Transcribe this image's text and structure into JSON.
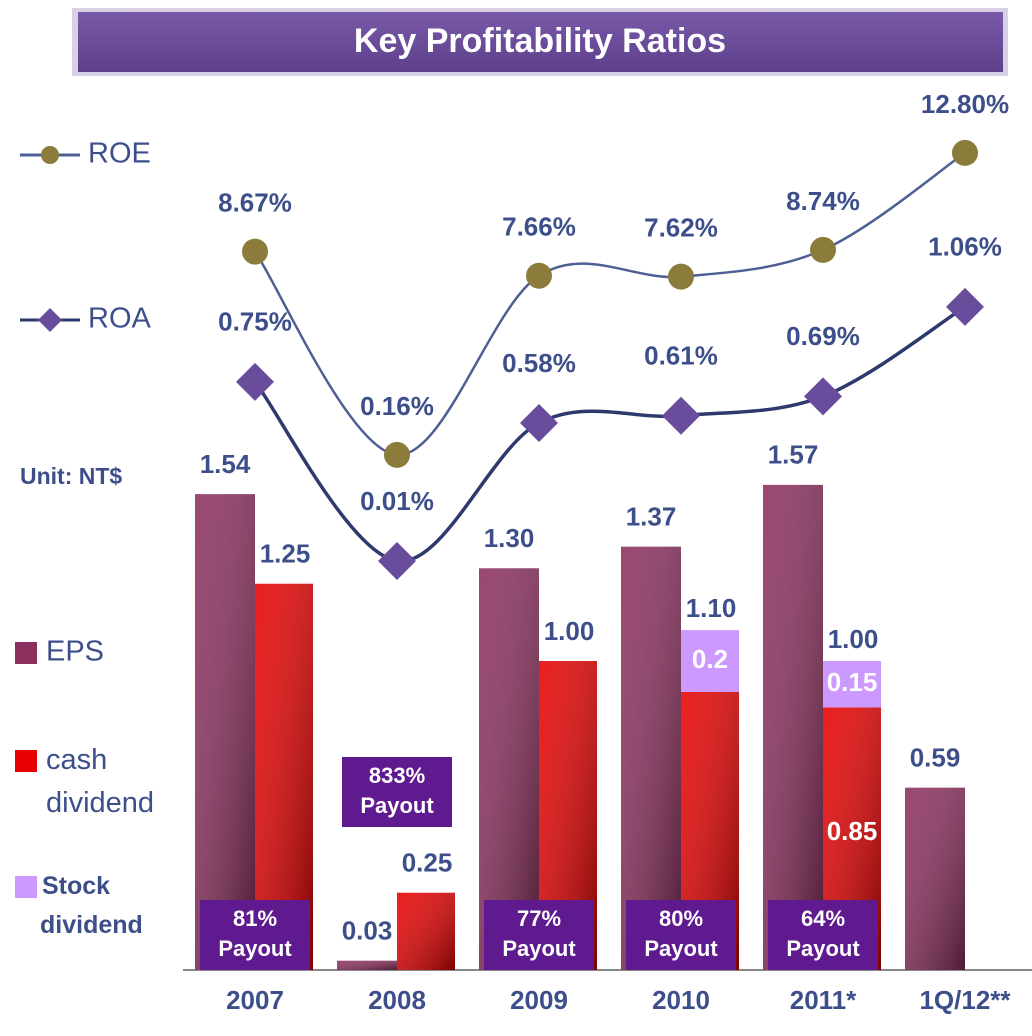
{
  "chart_data": [
    {
      "type": "bar",
      "title": "Key Profitability Ratios",
      "annotation": "Unit: NT$",
      "categories": [
        "2007",
        "2008",
        "2009",
        "2010",
        "2011*",
        "1Q/12**"
      ],
      "ylim": [
        0,
        3
      ],
      "series": [
        {
          "name": "EPS",
          "color": "#8b2f5e",
          "values": [
            1.54,
            0.03,
            1.3,
            1.37,
            1.57,
            0.59
          ],
          "value_labels": [
            "1.54",
            "0.03",
            "1.30",
            "1.37",
            "1.57",
            "0.59"
          ]
        },
        {
          "name": "cash dividend",
          "color": "#e60000",
          "values": [
            1.25,
            0.25,
            1.0,
            0.9,
            0.85,
            null
          ],
          "value_labels": [
            "1.25",
            "0.25",
            "1.00",
            null,
            "0.85",
            null
          ]
        },
        {
          "name": "Stock dividend",
          "color": "#cc99ff",
          "values": [
            null,
            null,
            null,
            0.2,
            0.15,
            null
          ],
          "value_labels": [
            null,
            null,
            null,
            "0.2",
            "0.15",
            null
          ]
        }
      ],
      "total_labels": [
        null,
        null,
        null,
        "1.10",
        "1.00",
        null
      ],
      "payout_labels": [
        "81%",
        "833%",
        "77%",
        "80%",
        "64%",
        null
      ],
      "payout_word": "Payout"
    },
    {
      "type": "line",
      "ylim": [
        -21.4,
        17.4
      ],
      "y2lim": [
        -1.68,
        2.15
      ],
      "series": [
        {
          "name": "ROE",
          "color": "#4d5f94",
          "marker_color": "#8c7c3c",
          "axis": "y",
          "values": [
            8.67,
            0.16,
            7.66,
            7.62,
            8.74,
            12.8
          ],
          "value_labels": [
            "8.67%",
            "0.16%",
            "7.66%",
            "7.62%",
            "8.74%",
            "12.80%"
          ]
        },
        {
          "name": "ROA",
          "color": "#2e3a6e",
          "marker_color": "#6a4c9c",
          "axis": "y2",
          "values": [
            0.75,
            0.01,
            0.58,
            0.61,
            0.69,
            1.06
          ],
          "value_labels": [
            "0.75%",
            "0.01%",
            "0.58%",
            "0.61%",
            "0.69%",
            "1.06%"
          ]
        }
      ]
    }
  ]
}
